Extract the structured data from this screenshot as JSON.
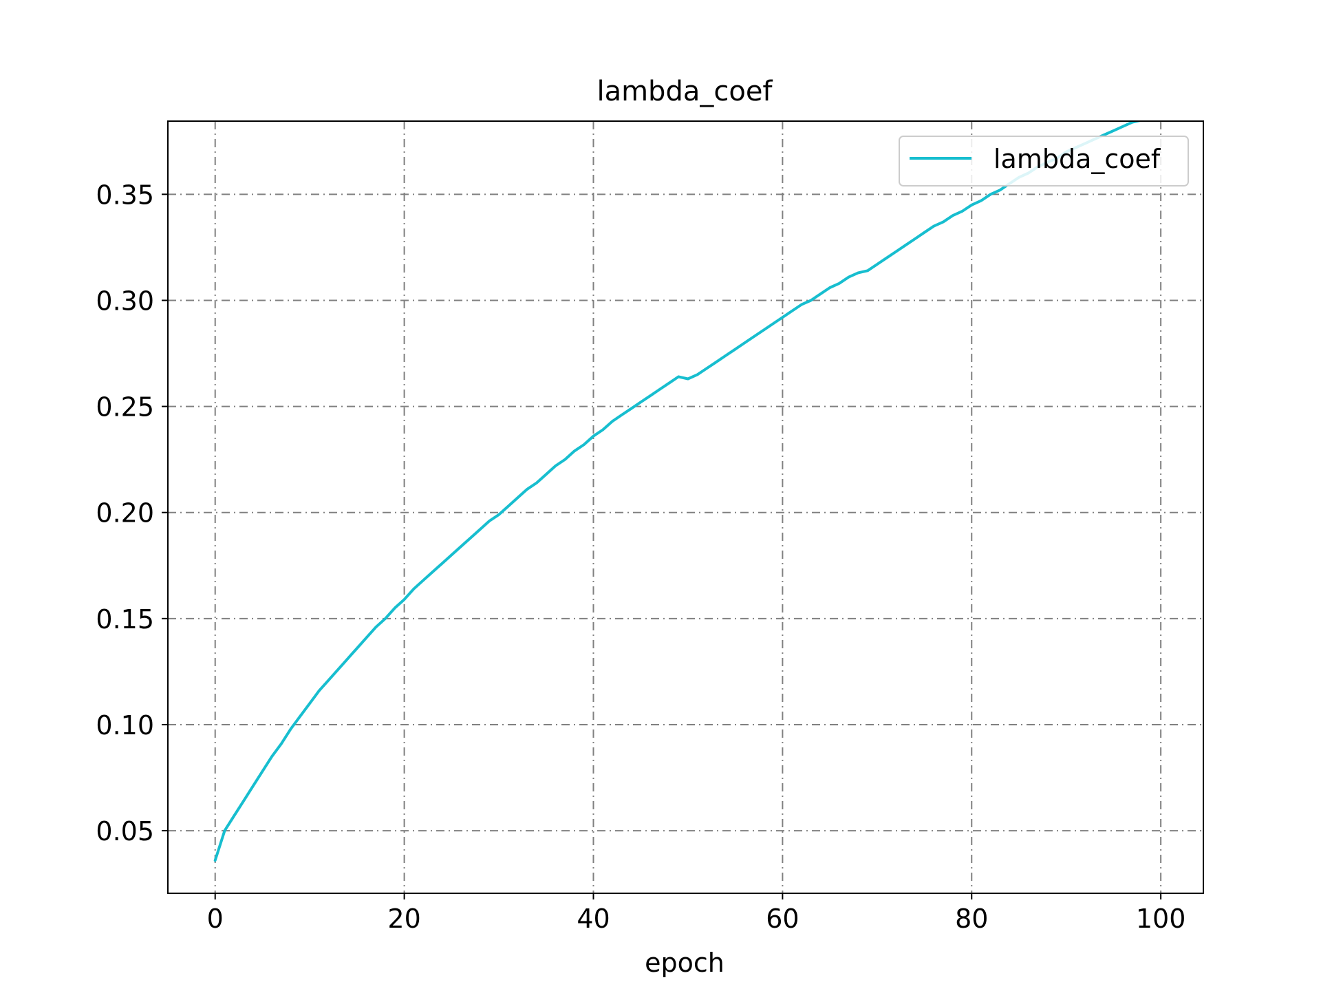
{
  "chart_data": {
    "type": "line",
    "title": "lambda_coef",
    "xlabel": "epoch",
    "ylabel": "",
    "xlim": [
      -5,
      104.5
    ],
    "ylim": [
      0.0205,
      0.3845
    ],
    "x_ticks": [
      0,
      20,
      40,
      60,
      80,
      100
    ],
    "x_tick_labels": [
      "0",
      "20",
      "40",
      "60",
      "80",
      "100"
    ],
    "y_ticks": [
      0.05,
      0.1,
      0.15,
      0.2,
      0.25,
      0.3,
      0.35
    ],
    "y_tick_labels": [
      "0.05",
      "0.10",
      "0.15",
      "0.20",
      "0.25",
      "0.30",
      "0.35"
    ],
    "grid": true,
    "grid_style": "dashdot",
    "legend_position": "upper-right",
    "series": [
      {
        "name": "lambda_coef",
        "color": "#17becf",
        "x": [
          0,
          1,
          2,
          3,
          4,
          5,
          6,
          7,
          8,
          9,
          10,
          11,
          12,
          13,
          14,
          15,
          16,
          17,
          18,
          19,
          20,
          21,
          22,
          23,
          24,
          25,
          26,
          27,
          28,
          29,
          30,
          31,
          32,
          33,
          34,
          35,
          36,
          37,
          38,
          39,
          40,
          41,
          42,
          43,
          44,
          45,
          46,
          47,
          48,
          49,
          50,
          51,
          52,
          53,
          54,
          55,
          56,
          57,
          58,
          59,
          60,
          61,
          62,
          63,
          64,
          65,
          66,
          67,
          68,
          69,
          70,
          71,
          72,
          73,
          74,
          75,
          76,
          77,
          78,
          79,
          80,
          81,
          82,
          83,
          84,
          85,
          86,
          87,
          88,
          89,
          90,
          91,
          92,
          93,
          94,
          95,
          96,
          97,
          98,
          99
        ],
        "y": [
          0.036,
          0.05,
          0.057,
          0.064,
          0.071,
          0.078,
          0.085,
          0.091,
          0.098,
          0.104,
          0.11,
          0.116,
          0.121,
          0.126,
          0.131,
          0.136,
          0.141,
          0.146,
          0.15,
          0.155,
          0.159,
          0.164,
          0.168,
          0.172,
          0.176,
          0.18,
          0.184,
          0.188,
          0.192,
          0.196,
          0.199,
          0.203,
          0.207,
          0.211,
          0.214,
          0.218,
          0.222,
          0.225,
          0.229,
          0.232,
          0.236,
          0.239,
          0.243,
          0.246,
          0.249,
          0.252,
          0.255,
          0.258,
          0.261,
          0.264,
          0.263,
          0.265,
          0.268,
          0.271,
          0.274,
          0.277,
          0.28,
          0.283,
          0.286,
          0.289,
          0.292,
          0.295,
          0.298,
          0.3,
          0.303,
          0.306,
          0.308,
          0.311,
          0.313,
          0.314,
          0.317,
          0.32,
          0.323,
          0.326,
          0.329,
          0.332,
          0.335,
          0.337,
          0.34,
          0.342,
          0.345,
          0.347,
          0.35,
          0.352,
          0.355,
          0.358,
          0.36,
          0.363,
          0.365,
          0.367,
          0.37,
          0.372,
          0.374,
          0.376,
          0.378,
          0.38,
          0.382,
          0.384,
          0.385,
          0.386
        ]
      }
    ]
  },
  "colors": {
    "series": "#17becf",
    "grid": "#808080",
    "axes": "#000000",
    "legend_border": "#cccccc"
  }
}
